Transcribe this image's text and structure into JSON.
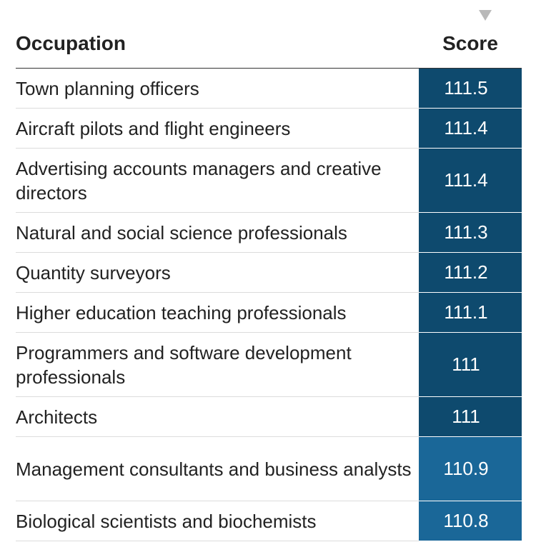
{
  "chart_data": {
    "type": "table",
    "columns": [
      "Occupation",
      "Score"
    ],
    "sort": "descending by Score",
    "colors": {
      "dark": "#0e4a6e",
      "light": "#1a6798"
    },
    "rows": [
      {
        "occupation": "Town planning officers",
        "score": "111.5",
        "value": 111.5
      },
      {
        "occupation": "Aircraft pilots and flight engineers",
        "score": "111.4",
        "value": 111.4
      },
      {
        "occupation": "Advertising accounts managers and creative directors",
        "score": "111.4",
        "value": 111.4
      },
      {
        "occupation": "Natural and social science professionals",
        "score": "111.3",
        "value": 111.3
      },
      {
        "occupation": "Quantity surveyors",
        "score": "111.2",
        "value": 111.2
      },
      {
        "occupation": "Higher education teaching professionals",
        "score": "111.1",
        "value": 111.1
      },
      {
        "occupation": "Programmers and software development professionals",
        "score": "111",
        "value": 111
      },
      {
        "occupation": "Architects",
        "score": "111",
        "value": 111
      },
      {
        "occupation": "Management consultants and business analysts",
        "score": "110.9",
        "value": 110.9
      },
      {
        "occupation": "Biological scientists and biochemists",
        "score": "110.8",
        "value": 110.8
      }
    ]
  }
}
